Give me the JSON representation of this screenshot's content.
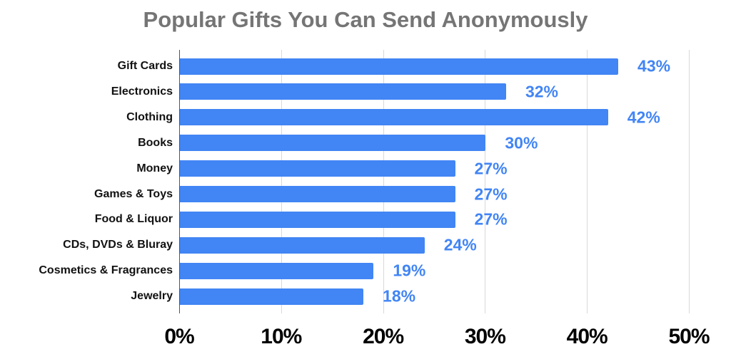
{
  "chart_data": {
    "type": "bar",
    "orientation": "horizontal",
    "title": "Popular Gifts You Can Send Anonymously",
    "xlabel": "",
    "ylabel": "",
    "categories": [
      "Gift Cards",
      "Electronics",
      "Clothing",
      "Books",
      "Money",
      "Games & Toys",
      "Food & Liquor",
      "CDs, DVDs & Bluray",
      "Cosmetics & Fragrances",
      "Jewelry"
    ],
    "values": [
      43,
      32,
      42,
      30,
      27,
      27,
      27,
      24,
      19,
      18
    ],
    "value_labels": [
      "43%",
      "32%",
      "42%",
      "30%",
      "27%",
      "27%",
      "27%",
      "24%",
      "19%",
      "18%"
    ],
    "xlim": [
      0,
      50
    ],
    "x_ticks": [
      "0%",
      "10%",
      "20%",
      "30%",
      "40%",
      "50%"
    ],
    "grid": true,
    "legend": "none",
    "colors": {
      "bar": "#4285f4",
      "label": "#4285f4",
      "title": "#757575"
    }
  }
}
